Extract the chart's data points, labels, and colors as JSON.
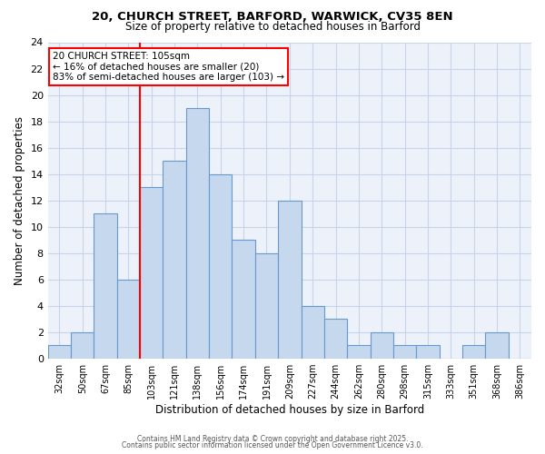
{
  "title_line1": "20, CHURCH STREET, BARFORD, WARWICK, CV35 8EN",
  "title_line2": "Size of property relative to detached houses in Barford",
  "xlabel": "Distribution of detached houses by size in Barford",
  "ylabel": "Number of detached properties",
  "bin_labels": [
    "32sqm",
    "50sqm",
    "67sqm",
    "85sqm",
    "103sqm",
    "121sqm",
    "138sqm",
    "156sqm",
    "174sqm",
    "191sqm",
    "209sqm",
    "227sqm",
    "244sqm",
    "262sqm",
    "280sqm",
    "298sqm",
    "315sqm",
    "333sqm",
    "351sqm",
    "368sqm",
    "386sqm"
  ],
  "bar_values": [
    1,
    2,
    11,
    6,
    13,
    15,
    19,
    14,
    9,
    8,
    12,
    4,
    3,
    1,
    2,
    1,
    1,
    0,
    1,
    2,
    0
  ],
  "bar_color": "#c5d8ee",
  "bar_edge_color": "#6699cc",
  "red_line_bin": 4,
  "annotation_title": "20 CHURCH STREET: 105sqm",
  "annotation_line2": "← 16% of detached houses are smaller (20)",
  "annotation_line3": "83% of semi-detached houses are larger (103) →",
  "ylim": [
    0,
    24
  ],
  "yticks": [
    0,
    2,
    4,
    6,
    8,
    10,
    12,
    14,
    16,
    18,
    20,
    22,
    24
  ],
  "grid_color": "#c8d4e8",
  "background_color": "#edf1fa",
  "footer_line1": "Contains HM Land Registry data © Crown copyright and database right 2025.",
  "footer_line2": "Contains public sector information licensed under the Open Government Licence v3.0."
}
